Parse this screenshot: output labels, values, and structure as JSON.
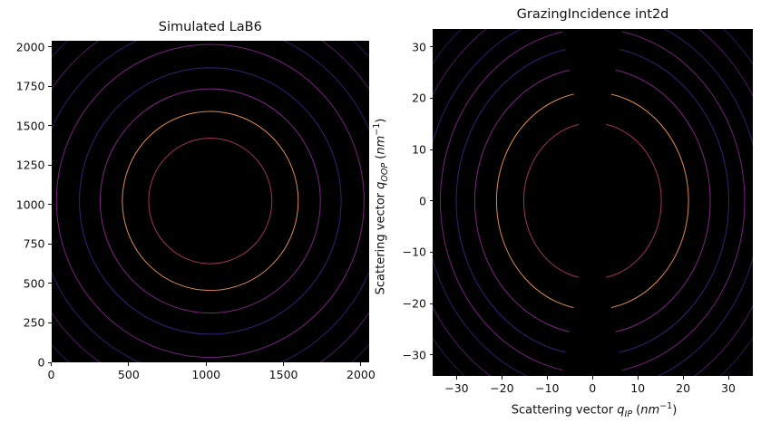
{
  "figure": {
    "background": "#ffffff",
    "plot_background": "#000000",
    "text_color": "#111111"
  },
  "chart_data": [
    {
      "type": "contour",
      "title": "Simulated LaB6",
      "xlabel": null,
      "ylabel": null,
      "xlim": [
        0,
        2053
      ],
      "ylim": [
        0,
        2040
      ],
      "xticks": [
        0,
        500,
        1000,
        1500,
        2000
      ],
      "yticks": [
        0,
        250,
        500,
        750,
        1000,
        1250,
        1500,
        1750,
        2000
      ],
      "grid": false,
      "legend": null,
      "center": [
        1024,
        1024
      ],
      "wedge_half_angle_deg": null,
      "rings": [
        {
          "r": 398,
          "color": "#9e3650"
        },
        {
          "r": 568,
          "color": "#dc8a52"
        },
        {
          "r": 711,
          "color": "#7d2583"
        },
        {
          "r": 845,
          "color": "#2e2472"
        },
        {
          "r": 993,
          "color": "#75217d"
        },
        {
          "r": 1122,
          "color": "#282166"
        },
        {
          "r": 1247,
          "color": "#4f1a64"
        },
        {
          "r": 1372,
          "color": "#201d4e"
        }
      ]
    },
    {
      "type": "contour",
      "title": "GrazingIncidence int2d",
      "xlabel": {
        "prefix": "Scattering vector ",
        "var": "q",
        "sub": "IP",
        "open": " (",
        "unit": "nm",
        "sup": "−1",
        "close": ")"
      },
      "ylabel": {
        "prefix": "Scattering vector ",
        "var": "q",
        "sub": "OOP",
        "open": " (",
        "unit": "nm",
        "sup": "−1",
        "close": ")"
      },
      "xlim": [
        -35.3,
        35.4
      ],
      "ylim": [
        -34.1,
        33.5
      ],
      "xticks": [
        -30,
        -20,
        -10,
        0,
        10,
        20,
        30
      ],
      "yticks": [
        30,
        20,
        10,
        0,
        -10,
        -20,
        -30
      ],
      "grid": false,
      "legend": null,
      "center": [
        0,
        0
      ],
      "wedge_half_angle_deg": 10,
      "rings": [
        {
          "r": 15.2,
          "color": "#9e3650"
        },
        {
          "r": 21.2,
          "color": "#dc8a52"
        },
        {
          "r": 26.0,
          "color": "#7d2583"
        },
        {
          "r": 30.1,
          "color": "#2e2472"
        },
        {
          "r": 33.6,
          "color": "#75217d"
        },
        {
          "r": 37.1,
          "color": "#282166"
        },
        {
          "r": 40.9,
          "color": "#4f1a64"
        },
        {
          "r": 44.3,
          "color": "#201d4e"
        }
      ]
    }
  ]
}
